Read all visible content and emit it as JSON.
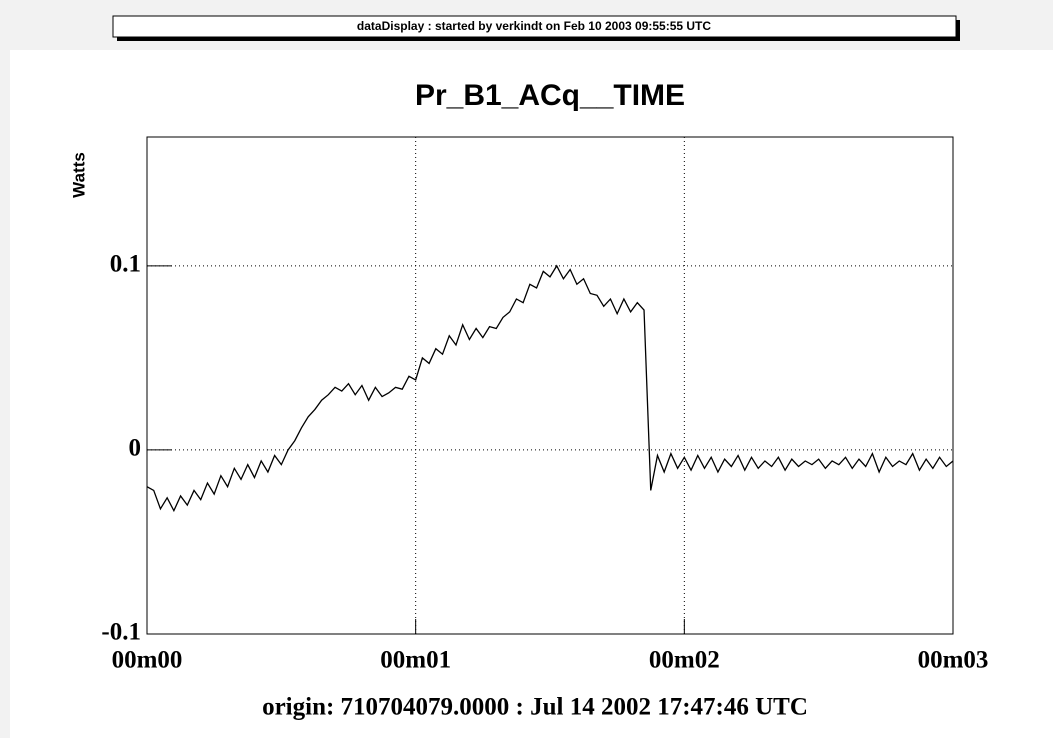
{
  "header": "dataDisplay : started by verkindt on Feb 10 2003 09:55:55 UTC",
  "chart_data": {
    "type": "line",
    "title": "Pr_B1_ACq__TIME",
    "y_label": "Watts",
    "x_label": "origin: 710704079.0000 : Jul 14 2002 17:47:46 UTC",
    "color": "#000000",
    "grid": true,
    "xlim": [
      0,
      3
    ],
    "ylim": [
      -0.1,
      0.17
    ],
    "xticks": [
      {
        "value": 0,
        "label": "00m00"
      },
      {
        "value": 1,
        "label": "00m01"
      },
      {
        "value": 2,
        "label": "00m02"
      },
      {
        "value": 3,
        "label": "00m03"
      }
    ],
    "yticks": [
      -0.1,
      0,
      0.1
    ],
    "x": [
      0,
      0.025,
      0.05,
      0.075,
      0.1,
      0.125,
      0.15,
      0.175,
      0.2,
      0.225,
      0.25,
      0.275,
      0.3,
      0.325,
      0.35,
      0.375,
      0.4,
      0.425,
      0.45,
      0.475,
      0.5,
      0.525,
      0.55,
      0.575,
      0.6,
      0.625,
      0.65,
      0.675,
      0.7,
      0.725,
      0.75,
      0.775,
      0.8,
      0.825,
      0.85,
      0.875,
      0.9,
      0.925,
      0.95,
      0.975,
      1,
      1.025,
      1.05,
      1.075,
      1.1,
      1.125,
      1.15,
      1.175,
      1.2,
      1.225,
      1.25,
      1.275,
      1.3,
      1.325,
      1.35,
      1.375,
      1.4,
      1.425,
      1.45,
      1.475,
      1.5,
      1.525,
      1.55,
      1.575,
      1.6,
      1.625,
      1.65,
      1.675,
      1.7,
      1.725,
      1.75,
      1.775,
      1.8,
      1.825,
      1.85,
      1.875,
      1.9,
      1.925,
      1.95,
      1.975,
      2,
      2.025,
      2.05,
      2.075,
      2.1,
      2.125,
      2.15,
      2.175,
      2.2,
      2.225,
      2.25,
      2.275,
      2.3,
      2.325,
      2.35,
      2.375,
      2.4,
      2.425,
      2.45,
      2.475,
      2.5,
      2.525,
      2.55,
      2.575,
      2.6,
      2.625,
      2.65,
      2.675,
      2.7,
      2.725,
      2.75,
      2.775,
      2.8,
      2.825,
      2.85,
      2.875,
      2.9,
      2.925,
      2.95,
      2.975,
      3
    ],
    "values": [
      -0.02,
      -0.022,
      -0.032,
      -0.026,
      -0.033,
      -0.025,
      -0.03,
      -0.022,
      -0.027,
      -0.018,
      -0.024,
      -0.014,
      -0.02,
      -0.01,
      -0.016,
      -0.008,
      -0.015,
      -0.006,
      -0.012,
      -0.003,
      -0.008,
      0,
      0.005,
      0.012,
      0.018,
      0.022,
      0.027,
      0.03,
      0.034,
      0.032,
      0.036,
      0.03,
      0.035,
      0.027,
      0.034,
      0.029,
      0.031,
      0.034,
      0.033,
      0.04,
      0.038,
      0.05,
      0.047,
      0.055,
      0.052,
      0.062,
      0.057,
      0.068,
      0.06,
      0.066,
      0.061,
      0.067,
      0.066,
      0.072,
      0.075,
      0.082,
      0.08,
      0.09,
      0.088,
      0.097,
      0.094,
      0.1,
      0.093,
      0.098,
      0.09,
      0.093,
      0.085,
      0.084,
      0.078,
      0.082,
      0.074,
      0.082,
      0.075,
      0.08,
      0.076,
      -0.022,
      -0.003,
      -0.012,
      -0.002,
      -0.01,
      -0.004,
      -0.011,
      -0.003,
      -0.01,
      -0.004,
      -0.012,
      -0.005,
      -0.009,
      -0.003,
      -0.011,
      -0.004,
      -0.01,
      -0.006,
      -0.009,
      -0.004,
      -0.011,
      -0.005,
      -0.009,
      -0.006,
      -0.008,
      -0.005,
      -0.01,
      -0.006,
      -0.008,
      -0.004,
      -0.01,
      -0.005,
      -0.009,
      -0.002,
      -0.012,
      -0.004,
      -0.009,
      -0.006,
      -0.008,
      -0.002,
      -0.011,
      -0.005,
      -0.01,
      -0.004,
      -0.009,
      -0.006
    ]
  }
}
